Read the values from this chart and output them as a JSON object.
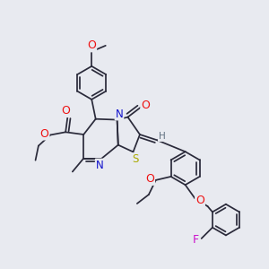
{
  "bg_color": "#e8eaf0",
  "bond_color": "#2a2a3a",
  "atom_colors": {
    "O": "#ee1111",
    "N": "#1111cc",
    "S": "#aaaa00",
    "F": "#cc11cc",
    "H": "#607080",
    "C": "#2a2a3a"
  },
  "lw": 1.25,
  "fs": 7.5,
  "figsize": [
    3.0,
    3.0
  ],
  "dpi": 100
}
